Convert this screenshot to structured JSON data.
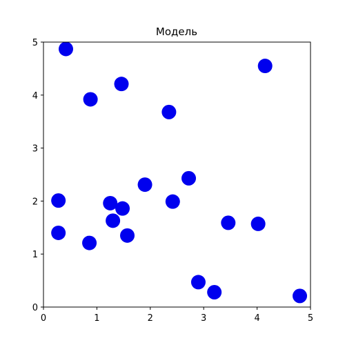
{
  "chart_data": {
    "type": "scatter",
    "title": "Модель",
    "xlabel": "",
    "ylabel": "",
    "xlim": [
      0,
      5
    ],
    "ylim": [
      0,
      5
    ],
    "xticks": [
      "0",
      "1",
      "2",
      "3",
      "4",
      "5"
    ],
    "yticks": [
      "0",
      "1",
      "2",
      "3",
      "4",
      "5"
    ],
    "grid": false,
    "marker_color": "#0000ee",
    "points": [
      {
        "x": 0.42,
        "y": 4.87
      },
      {
        "x": 1.46,
        "y": 4.21
      },
      {
        "x": 0.88,
        "y": 3.92
      },
      {
        "x": 2.35,
        "y": 3.68
      },
      {
        "x": 4.15,
        "y": 4.55
      },
      {
        "x": 0.28,
        "y": 2.01
      },
      {
        "x": 1.25,
        "y": 1.96
      },
      {
        "x": 1.48,
        "y": 1.86
      },
      {
        "x": 1.9,
        "y": 2.31
      },
      {
        "x": 2.72,
        "y": 2.43
      },
      {
        "x": 2.42,
        "y": 1.99
      },
      {
        "x": 1.3,
        "y": 1.63
      },
      {
        "x": 1.57,
        "y": 1.35
      },
      {
        "x": 0.28,
        "y": 1.4
      },
      {
        "x": 0.86,
        "y": 1.21
      },
      {
        "x": 3.46,
        "y": 1.59
      },
      {
        "x": 4.02,
        "y": 1.57
      },
      {
        "x": 2.9,
        "y": 0.47
      },
      {
        "x": 3.2,
        "y": 0.28
      },
      {
        "x": 4.8,
        "y": 0.21
      }
    ]
  }
}
